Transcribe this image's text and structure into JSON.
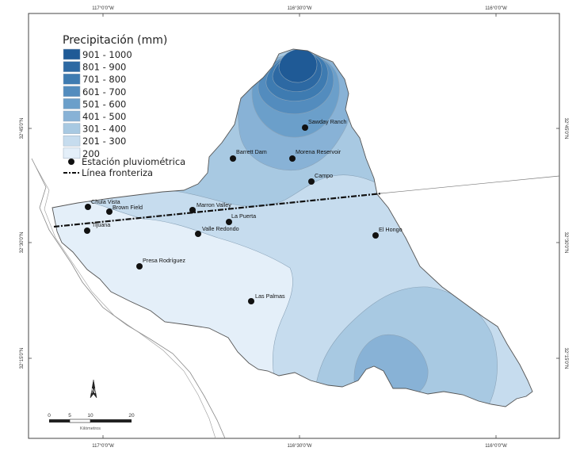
{
  "graticule": {
    "top": [
      "117°0'0\"W",
      "116°30'0\"W",
      "116°0'0\"W"
    ],
    "bottom": [
      "117°0'0\"W",
      "116°30'0\"W",
      "116°0'0\"W"
    ],
    "left": [
      "32°45'0\"N",
      "32°30'0\"N",
      "32°15'0\"N"
    ],
    "right": [
      "32°45'0\"N",
      "32°30'0\"N",
      "32°15'0\"N"
    ]
  },
  "legend": {
    "title": "Precipitación (mm)",
    "classes": [
      {
        "label": "901 - 1000",
        "color": "#1f5a96"
      },
      {
        "label": "801 - 900",
        "color": "#2d69a3"
      },
      {
        "label": "701 - 800",
        "color": "#3e7bb1"
      },
      {
        "label": "601 - 700",
        "color": "#538cbe"
      },
      {
        "label": "501 - 600",
        "color": "#6b9fca"
      },
      {
        "label": "401 - 500",
        "color": "#88b2d6"
      },
      {
        "label": "301 - 400",
        "color": "#a8c9e2"
      },
      {
        "label": "201 - 300",
        "color": "#c6dcee"
      },
      {
        "label": "200",
        "color": "#e4eff9"
      }
    ],
    "station_label": "Estación pluviométrica",
    "border_label": "Línea fronteriza"
  },
  "stations": [
    {
      "name": "Chula Vista"
    },
    {
      "name": "Brown Field"
    },
    {
      "name": "Tijuana"
    },
    {
      "name": "Marron Valley"
    },
    {
      "name": "La Puerta"
    },
    {
      "name": "Valle Redondo"
    },
    {
      "name": "Presa Rodríguez"
    },
    {
      "name": "Las Palmas"
    },
    {
      "name": "Barrett Dam"
    },
    {
      "name": "Morena Reservoir"
    },
    {
      "name": "Sawday Ranch"
    },
    {
      "name": "Campo"
    },
    {
      "name": "El Hongo"
    }
  ],
  "north_arrow": "N",
  "scale_bar": {
    "ticks": [
      "0",
      "5",
      "10",
      "20"
    ],
    "unit": "Kilómetros"
  }
}
